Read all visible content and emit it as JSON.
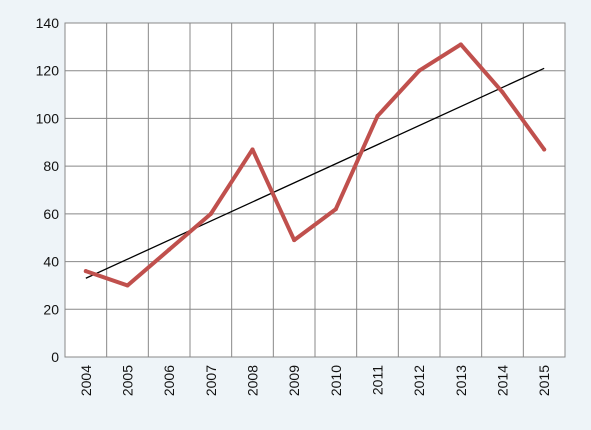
{
  "chart_data": {
    "type": "line",
    "title": "",
    "xlabel": "",
    "ylabel": "",
    "x": [
      "2004",
      "2005",
      "2006",
      "2007",
      "2008",
      "2009",
      "2010",
      "2011",
      "2012",
      "2013",
      "2014",
      "2015"
    ],
    "series": [
      {
        "values": [
          36,
          30,
          45,
          60,
          87,
          49,
          62,
          101,
          120,
          131,
          111,
          87
        ],
        "color": "#c0504d"
      }
    ],
    "trendline": {
      "start": 33,
      "end": 121,
      "color": "#000000"
    },
    "ylim": [
      0,
      140
    ],
    "yticks": [
      0,
      20,
      40,
      60,
      80,
      100,
      120,
      140
    ],
    "grid": true,
    "legend": "none",
    "background": "#eef4f8",
    "plot_background": "#ffffff"
  }
}
